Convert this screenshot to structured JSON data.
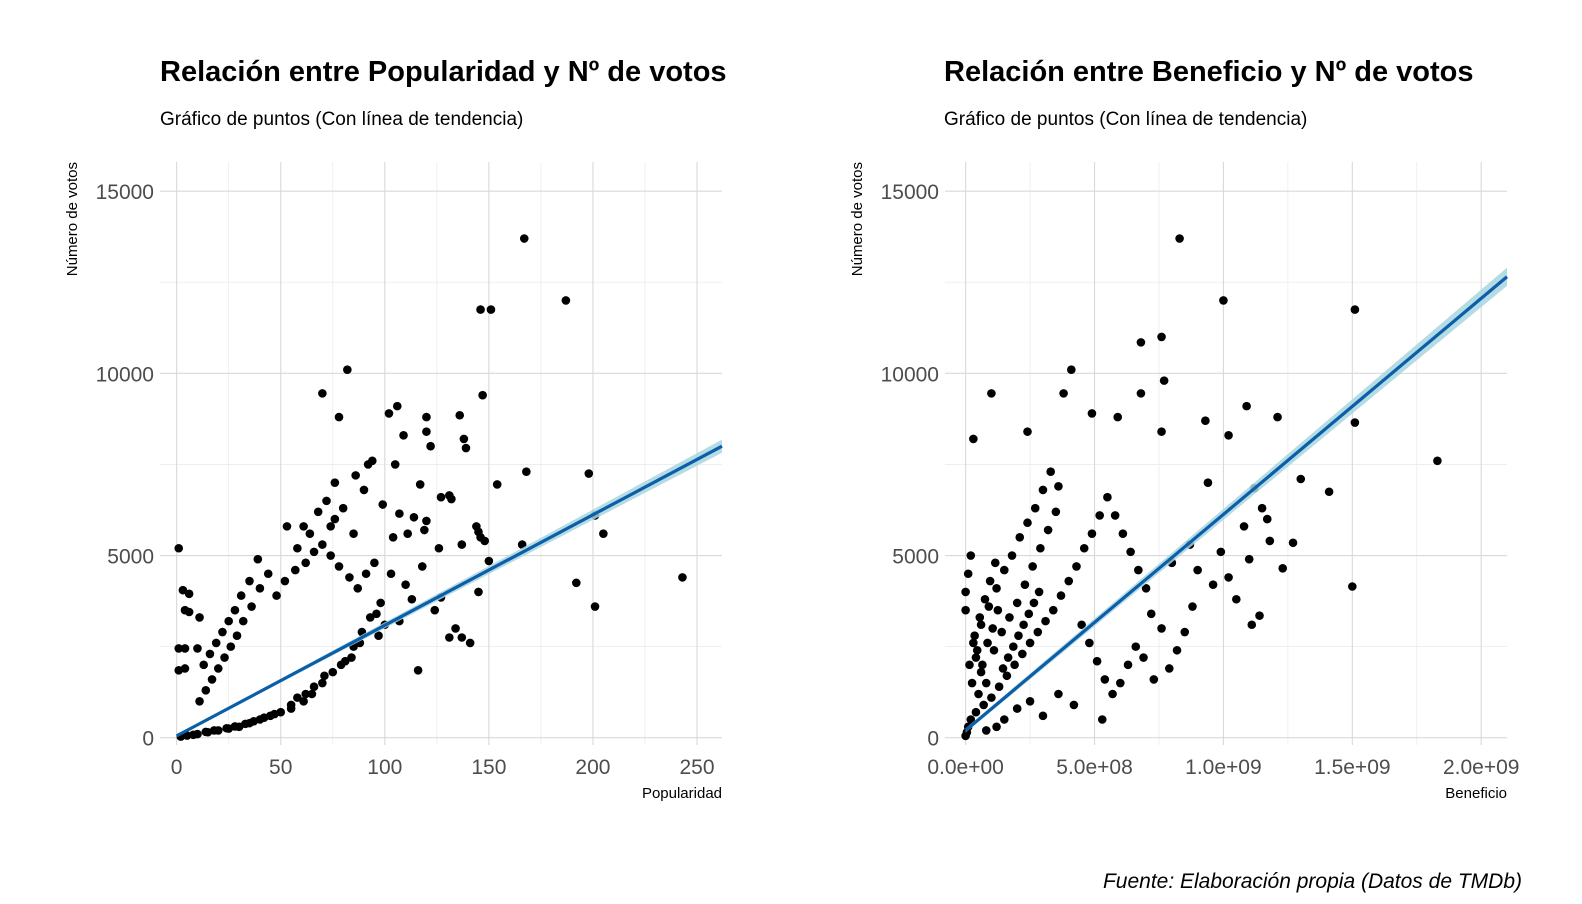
{
  "caption": "Fuente: Elaboración propia (Datos de TMDb)",
  "colors": {
    "points": "#000000",
    "trend": "#0b5ea8",
    "band": "#a8d5e0",
    "grid": "#d9d9d9"
  },
  "chart_data": [
    {
      "type": "scatter",
      "title": "Relación entre Popularidad y Nº de votos",
      "subtitle": "Gráfico de puntos (Con línea de tendencia)",
      "xlabel": "Popularidad",
      "ylabel": "Número de votos",
      "xlim": [
        -8,
        262
      ],
      "ylim": [
        -200,
        15800
      ],
      "xticks": [
        0,
        50,
        100,
        150,
        200,
        250
      ],
      "xtick_labels": [
        "0",
        "50",
        "100",
        "150",
        "200",
        "250"
      ],
      "yticks": [
        0,
        5000,
        10000,
        15000
      ],
      "ytick_labels": [
        "0",
        "5000",
        "10000",
        "15000"
      ],
      "trend": {
        "x": [
          0,
          262
        ],
        "y": [
          50,
          8000
        ],
        "band_halfwidth": [
          20,
          180
        ]
      },
      "points": [
        [
          167,
          13700
        ],
        [
          187,
          12000
        ],
        [
          146,
          11750
        ],
        [
          151,
          11750
        ],
        [
          82,
          10100
        ],
        [
          70,
          9450
        ],
        [
          147,
          9400
        ],
        [
          106,
          9100
        ],
        [
          102,
          8900
        ],
        [
          120,
          8800
        ],
        [
          78,
          8800
        ],
        [
          136,
          8850
        ],
        [
          109,
          8300
        ],
        [
          120,
          8400
        ],
        [
          138,
          8200
        ],
        [
          122,
          8000
        ],
        [
          139,
          7950
        ],
        [
          94,
          7600
        ],
        [
          105,
          7500
        ],
        [
          92,
          7500
        ],
        [
          168,
          7300
        ],
        [
          198,
          7250
        ],
        [
          76,
          7000
        ],
        [
          154,
          6950
        ],
        [
          117,
          6950
        ],
        [
          131,
          6650
        ],
        [
          127,
          6600
        ],
        [
          132,
          6550
        ],
        [
          201,
          6100
        ],
        [
          205,
          5600
        ],
        [
          166,
          5300
        ],
        [
          137,
          5300
        ],
        [
          1,
          5200
        ],
        [
          119,
          5700
        ],
        [
          74,
          5800
        ],
        [
          53,
          5800
        ],
        [
          61,
          5800
        ],
        [
          144,
          5800
        ],
        [
          145,
          5650
        ],
        [
          146,
          5500
        ],
        [
          148,
          5400
        ],
        [
          126,
          5200
        ],
        [
          120,
          5950
        ],
        [
          114,
          6050
        ],
        [
          107,
          6150
        ],
        [
          104,
          5500
        ],
        [
          243,
          4400
        ],
        [
          192,
          4250
        ],
        [
          201,
          3600
        ],
        [
          4,
          3500
        ],
        [
          6,
          3450
        ],
        [
          3,
          4050
        ],
        [
          6,
          3950
        ],
        [
          11,
          3300
        ],
        [
          4,
          2450
        ],
        [
          1,
          2450
        ],
        [
          10,
          2450
        ],
        [
          1,
          1850
        ],
        [
          4,
          1900
        ],
        [
          150,
          4850
        ],
        [
          127,
          3850
        ],
        [
          113,
          3800
        ],
        [
          107,
          3200
        ],
        [
          137,
          2750
        ],
        [
          116,
          1850
        ],
        [
          141,
          2600
        ],
        [
          134,
          3000
        ],
        [
          131,
          2750
        ],
        [
          124,
          3500
        ],
        [
          145,
          4000
        ],
        [
          96,
          3400
        ],
        [
          100,
          3100
        ],
        [
          97,
          2800
        ],
        [
          88,
          2600
        ],
        [
          84,
          2200
        ],
        [
          79,
          2000
        ],
        [
          71,
          1700
        ],
        [
          66,
          1400
        ],
        [
          62,
          1200
        ],
        [
          58,
          1100
        ],
        [
          55,
          900
        ],
        [
          50,
          700
        ],
        [
          45,
          600
        ],
        [
          40,
          500
        ],
        [
          35,
          400
        ],
        [
          30,
          300
        ],
        [
          25,
          250
        ],
        [
          20,
          200
        ],
        [
          15,
          150
        ],
        [
          10,
          100
        ],
        [
          8,
          80
        ],
        [
          5,
          60
        ],
        [
          2,
          30
        ],
        [
          48,
          3900
        ],
        [
          52,
          4300
        ],
        [
          44,
          4500
        ],
        [
          39,
          4900
        ],
        [
          35,
          4300
        ],
        [
          31,
          3900
        ],
        [
          28,
          3500
        ],
        [
          25,
          3200
        ],
        [
          22,
          2900
        ],
        [
          19,
          2600
        ],
        [
          16,
          2300
        ],
        [
          13,
          2000
        ],
        [
          57,
          4600
        ],
        [
          62,
          4800
        ],
        [
          66,
          5100
        ],
        [
          70,
          5300
        ],
        [
          74,
          5000
        ],
        [
          78,
          4700
        ],
        [
          83,
          4400
        ],
        [
          87,
          4100
        ],
        [
          91,
          4500
        ],
        [
          95,
          4800
        ],
        [
          85,
          5600
        ],
        [
          80,
          6300
        ],
        [
          76,
          6000
        ],
        [
          72,
          6500
        ],
        [
          68,
          6200
        ],
        [
          64,
          5600
        ],
        [
          58,
          5200
        ],
        [
          40,
          4100
        ],
        [
          36,
          3600
        ],
        [
          32,
          3200
        ],
        [
          29,
          2800
        ],
        [
          26,
          2500
        ],
        [
          23,
          2200
        ],
        [
          20,
          1900
        ],
        [
          17,
          1600
        ],
        [
          14,
          1300
        ],
        [
          11,
          1000
        ],
        [
          86,
          7200
        ],
        [
          90,
          6800
        ],
        [
          99,
          6400
        ],
        [
          111,
          5600
        ],
        [
          118,
          4700
        ],
        [
          110,
          4200
        ],
        [
          103,
          4500
        ],
        [
          98,
          3700
        ],
        [
          93,
          3300
        ],
        [
          89,
          2900
        ],
        [
          85,
          2500
        ],
        [
          81,
          2100
        ],
        [
          75,
          1800
        ],
        [
          70,
          1500
        ],
        [
          65,
          1200
        ],
        [
          61,
          1000
        ],
        [
          55,
          800
        ],
        [
          47,
          650
        ],
        [
          42,
          550
        ],
        [
          37,
          450
        ],
        [
          33,
          380
        ],
        [
          28,
          310
        ],
        [
          24,
          260
        ],
        [
          18,
          200
        ],
        [
          14,
          160
        ]
      ]
    },
    {
      "type": "scatter",
      "title": "Relación entre Beneficio y Nº de votos",
      "subtitle": "Gráfico de puntos (Con línea de tendencia)",
      "xlabel": "Beneficio",
      "ylabel": "Número de votos",
      "xlim": [
        -80000000,
        2100000000
      ],
      "ylim": [
        -200,
        15800
      ],
      "xticks": [
        0,
        500000000,
        1000000000,
        1500000000,
        2000000000
      ],
      "xtick_labels": [
        "0.0e+00",
        "5.0e+08",
        "1.0e+09",
        "1.5e+09",
        "2.0e+09"
      ],
      "yticks": [
        0,
        5000,
        10000,
        15000
      ],
      "ytick_labels": [
        "0",
        "5000",
        "10000",
        "15000"
      ],
      "trend": {
        "x": [
          0,
          2100000000
        ],
        "y": [
          200,
          12650
        ],
        "band_halfwidth": [
          60,
          250
        ]
      },
      "points": [
        [
          830000000,
          13700
        ],
        [
          1000000000,
          12000
        ],
        [
          1510000000,
          11750
        ],
        [
          760000000,
          11000
        ],
        [
          680000000,
          10850
        ],
        [
          770000000,
          9800
        ],
        [
          410000000,
          10100
        ],
        [
          100000000,
          9450
        ],
        [
          380000000,
          9450
        ],
        [
          680000000,
          9450
        ],
        [
          1090000000,
          9100
        ],
        [
          490000000,
          8900
        ],
        [
          590000000,
          8800
        ],
        [
          1210000000,
          8800
        ],
        [
          930000000,
          8700
        ],
        [
          1510000000,
          8650
        ],
        [
          1020000000,
          8300
        ],
        [
          760000000,
          8400
        ],
        [
          30000000,
          8200
        ],
        [
          1830000000,
          7600
        ],
        [
          240000000,
          8400
        ],
        [
          1410000000,
          6750
        ],
        [
          1270000000,
          5350
        ],
        [
          1500000000,
          4150
        ],
        [
          1140000000,
          3350
        ],
        [
          1110000000,
          3100
        ],
        [
          1180000000,
          5400
        ],
        [
          1150000000,
          6300
        ],
        [
          1120000000,
          6850
        ],
        [
          940000000,
          7000
        ],
        [
          1080000000,
          5800
        ],
        [
          990000000,
          5100
        ],
        [
          960000000,
          4200
        ],
        [
          880000000,
          3600
        ],
        [
          850000000,
          2900
        ],
        [
          820000000,
          2400
        ],
        [
          790000000,
          1900
        ],
        [
          760000000,
          3000
        ],
        [
          720000000,
          3400
        ],
        [
          700000000,
          4100
        ],
        [
          670000000,
          4600
        ],
        [
          640000000,
          5100
        ],
        [
          610000000,
          5600
        ],
        [
          580000000,
          6100
        ],
        [
          550000000,
          6600
        ],
        [
          520000000,
          6100
        ],
        [
          490000000,
          5600
        ],
        [
          460000000,
          5200
        ],
        [
          430000000,
          4700
        ],
        [
          400000000,
          4300
        ],
        [
          370000000,
          3900
        ],
        [
          340000000,
          3500
        ],
        [
          310000000,
          3200
        ],
        [
          280000000,
          2900
        ],
        [
          250000000,
          2600
        ],
        [
          220000000,
          2300
        ],
        [
          190000000,
          2000
        ],
        [
          160000000,
          1700
        ],
        [
          130000000,
          1400
        ],
        [
          100000000,
          1100
        ],
        [
          70000000,
          900
        ],
        [
          40000000,
          700
        ],
        [
          20000000,
          500
        ],
        [
          10000000,
          300
        ],
        [
          5000000,
          150
        ],
        [
          0,
          50
        ],
        [
          30000000,
          2600
        ],
        [
          60000000,
          3100
        ],
        [
          90000000,
          3600
        ],
        [
          120000000,
          4100
        ],
        [
          150000000,
          4600
        ],
        [
          180000000,
          5000
        ],
        [
          210000000,
          5500
        ],
        [
          240000000,
          5900
        ],
        [
          270000000,
          6300
        ],
        [
          300000000,
          6800
        ],
        [
          330000000,
          7300
        ],
        [
          360000000,
          6900
        ],
        [
          0,
          3500
        ],
        [
          0,
          4000
        ],
        [
          10000000,
          4500
        ],
        [
          20000000,
          5000
        ],
        [
          40000000,
          2200
        ],
        [
          60000000,
          1800
        ],
        [
          80000000,
          1500
        ],
        [
          110000000,
          2400
        ],
        [
          140000000,
          2900
        ],
        [
          170000000,
          3300
        ],
        [
          200000000,
          3700
        ],
        [
          230000000,
          4200
        ],
        [
          260000000,
          4700
        ],
        [
          290000000,
          5200
        ],
        [
          320000000,
          5700
        ],
        [
          350000000,
          6200
        ],
        [
          450000000,
          3100
        ],
        [
          480000000,
          2600
        ],
        [
          510000000,
          2100
        ],
        [
          540000000,
          1600
        ],
        [
          570000000,
          1200
        ],
        [
          600000000,
          1500
        ],
        [
          630000000,
          2000
        ],
        [
          660000000,
          2500
        ],
        [
          690000000,
          2200
        ],
        [
          730000000,
          1600
        ],
        [
          800000000,
          4800
        ],
        [
          870000000,
          5300
        ],
        [
          900000000,
          4600
        ],
        [
          1020000000,
          4400
        ],
        [
          1050000000,
          3800
        ],
        [
          1100000000,
          4900
        ],
        [
          1170000000,
          6000
        ],
        [
          1230000000,
          4650
        ],
        [
          1300000000,
          7100
        ],
        [
          530000000,
          500
        ],
        [
          420000000,
          900
        ],
        [
          360000000,
          1200
        ],
        [
          300000000,
          600
        ],
        [
          250000000,
          1000
        ],
        [
          200000000,
          800
        ],
        [
          150000000,
          500
        ],
        [
          120000000,
          300
        ],
        [
          80000000,
          200
        ],
        [
          50000000,
          1200
        ],
        [
          25000000,
          1500
        ],
        [
          15000000,
          2000
        ],
        [
          35000000,
          2800
        ],
        [
          55000000,
          3300
        ],
        [
          75000000,
          3800
        ],
        [
          95000000,
          4300
        ],
        [
          115000000,
          4800
        ],
        [
          45000000,
          2400
        ],
        [
          65000000,
          2000
        ],
        [
          85000000,
          2600
        ],
        [
          105000000,
          3000
        ],
        [
          125000000,
          3500
        ],
        [
          145000000,
          1900
        ],
        [
          165000000,
          2200
        ],
        [
          185000000,
          2500
        ],
        [
          205000000,
          2800
        ],
        [
          225000000,
          3100
        ],
        [
          245000000,
          3400
        ],
        [
          265000000,
          3700
        ],
        [
          285000000,
          4000
        ]
      ]
    }
  ]
}
